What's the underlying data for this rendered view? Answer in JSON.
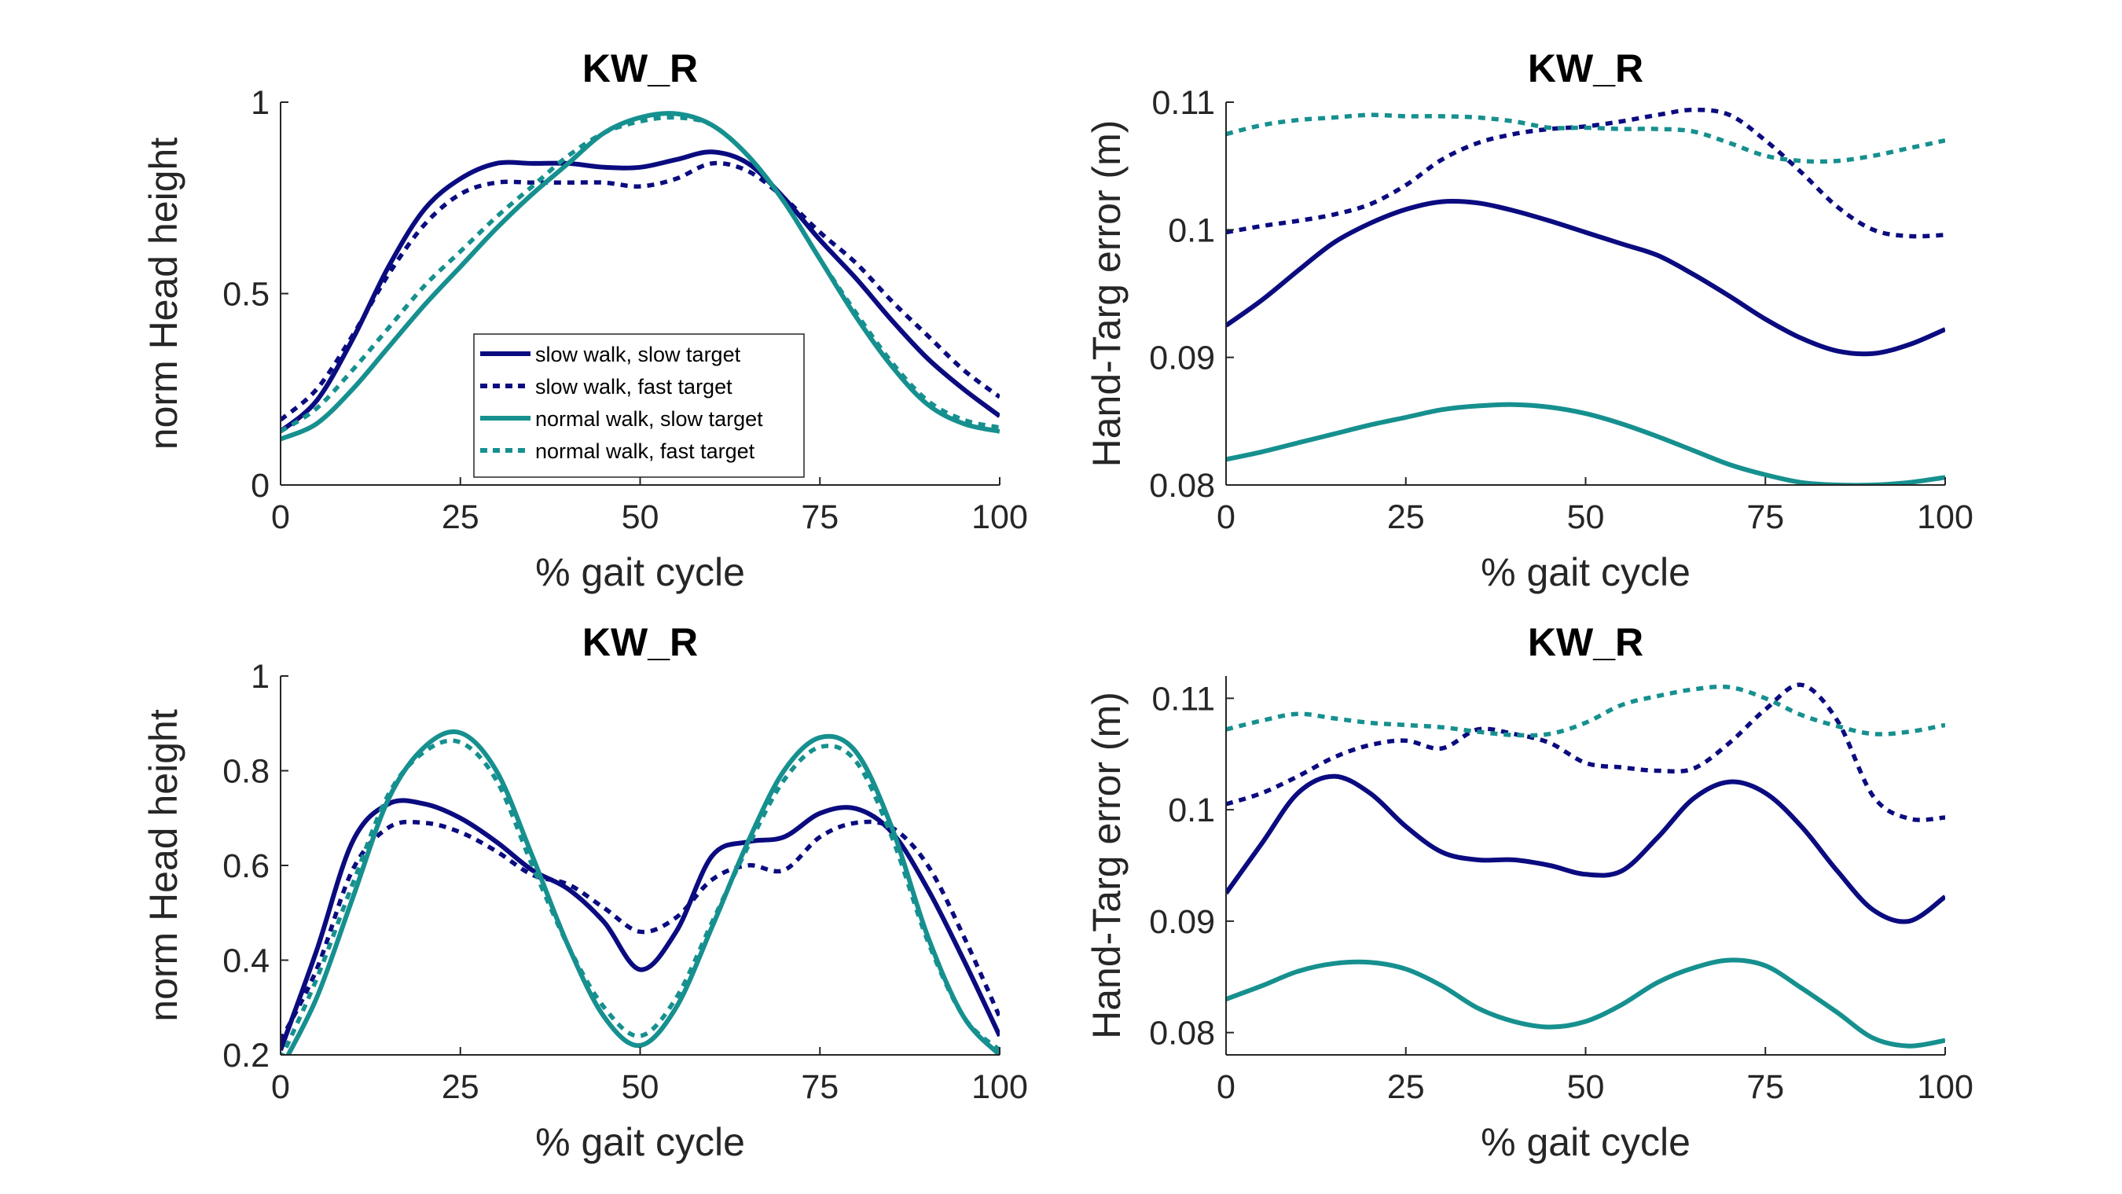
{
  "colors": {
    "navy": "#0b0b80",
    "teal": "#16908f"
  },
  "chart_data": [
    {
      "type": "line",
      "title": "KW_R",
      "xlabel": "% gait cycle",
      "ylabel": "norm Head height",
      "xlim": [
        0,
        100
      ],
      "ylim": [
        0,
        1
      ],
      "xticks": [
        "0",
        "25",
        "50",
        "75",
        "100"
      ],
      "yticks": [
        "0",
        "0.5",
        "1"
      ],
      "legend": {
        "placement": "center-left",
        "entries": [
          "slow walk, slow target",
          "slow walk, fast target",
          "normal walk, slow target",
          "normal walk, fast target"
        ]
      },
      "series": [
        {
          "name": "slow walk, slow target",
          "color": "#0b0b80",
          "dash": "solid",
          "x": [
            0,
            5,
            10,
            15,
            20,
            25,
            30,
            35,
            40,
            45,
            50,
            55,
            60,
            65,
            70,
            75,
            80,
            85,
            90,
            95,
            100
          ],
          "y": [
            0.14,
            0.22,
            0.38,
            0.57,
            0.72,
            0.8,
            0.84,
            0.84,
            0.84,
            0.83,
            0.83,
            0.85,
            0.87,
            0.84,
            0.75,
            0.64,
            0.54,
            0.43,
            0.33,
            0.25,
            0.18
          ]
        },
        {
          "name": "slow walk, fast target",
          "color": "#0b0b80",
          "dash": "dotted",
          "x": [
            0,
            5,
            10,
            15,
            20,
            25,
            30,
            35,
            40,
            45,
            50,
            55,
            60,
            65,
            70,
            75,
            80,
            85,
            90,
            95,
            100
          ],
          "y": [
            0.17,
            0.25,
            0.39,
            0.55,
            0.68,
            0.76,
            0.79,
            0.79,
            0.79,
            0.79,
            0.78,
            0.8,
            0.84,
            0.82,
            0.75,
            0.66,
            0.58,
            0.48,
            0.39,
            0.3,
            0.23
          ]
        },
        {
          "name": "normal walk, slow target",
          "color": "#16908f",
          "dash": "solid",
          "x": [
            0,
            5,
            10,
            15,
            20,
            25,
            30,
            35,
            40,
            45,
            50,
            55,
            60,
            65,
            70,
            75,
            80,
            85,
            90,
            95,
            100
          ],
          "y": [
            0.12,
            0.16,
            0.25,
            0.36,
            0.47,
            0.57,
            0.67,
            0.76,
            0.84,
            0.92,
            0.96,
            0.97,
            0.94,
            0.86,
            0.74,
            0.59,
            0.44,
            0.31,
            0.21,
            0.16,
            0.14
          ]
        },
        {
          "name": "normal walk, fast target",
          "color": "#16908f",
          "dash": "dotted",
          "x": [
            0,
            5,
            10,
            15,
            20,
            25,
            30,
            35,
            40,
            45,
            50,
            55,
            60,
            65,
            70,
            75,
            80,
            85,
            90,
            95,
            100
          ],
          "y": [
            0.14,
            0.2,
            0.3,
            0.41,
            0.52,
            0.61,
            0.7,
            0.78,
            0.86,
            0.92,
            0.95,
            0.96,
            0.94,
            0.86,
            0.74,
            0.59,
            0.45,
            0.32,
            0.22,
            0.17,
            0.15
          ]
        }
      ]
    },
    {
      "type": "line",
      "title": "KW_R",
      "xlabel": "% gait cycle",
      "ylabel": "Hand-Targ error (m)",
      "xlim": [
        0,
        100
      ],
      "ylim": [
        0.08,
        0.11
      ],
      "xticks": [
        "0",
        "25",
        "50",
        "75",
        "100"
      ],
      "yticks": [
        "0.08",
        "0.09",
        "0.1",
        "0.11"
      ],
      "series": [
        {
          "name": "slow walk, slow target",
          "color": "#0b0b80",
          "dash": "solid",
          "x": [
            0,
            5,
            10,
            15,
            20,
            25,
            30,
            35,
            40,
            45,
            50,
            55,
            60,
            65,
            70,
            75,
            80,
            85,
            90,
            95,
            100
          ],
          "y": [
            0.0925,
            0.0945,
            0.0968,
            0.099,
            0.1005,
            0.1016,
            0.1022,
            0.1021,
            0.1015,
            0.1007,
            0.0998,
            0.0989,
            0.098,
            0.0965,
            0.0948,
            0.093,
            0.0915,
            0.0905,
            0.0903,
            0.091,
            0.0922
          ]
        },
        {
          "name": "slow walk, fast target",
          "color": "#0b0b80",
          "dash": "dotted",
          "x": [
            0,
            5,
            10,
            15,
            20,
            25,
            30,
            35,
            40,
            45,
            50,
            55,
            60,
            65,
            70,
            75,
            80,
            85,
            90,
            95,
            100
          ],
          "y": [
            0.0998,
            0.1003,
            0.1007,
            0.1012,
            0.102,
            0.1035,
            0.1055,
            0.1068,
            0.1075,
            0.1079,
            0.1081,
            0.1085,
            0.109,
            0.1094,
            0.109,
            0.107,
            0.1045,
            0.1018,
            0.1,
            0.0995,
            0.0996
          ]
        },
        {
          "name": "normal walk, slow target",
          "color": "#16908f",
          "dash": "solid",
          "x": [
            0,
            5,
            10,
            15,
            20,
            25,
            30,
            35,
            40,
            45,
            50,
            55,
            60,
            65,
            70,
            75,
            80,
            85,
            90,
            95,
            100
          ],
          "y": [
            0.082,
            0.0826,
            0.0833,
            0.084,
            0.0847,
            0.0853,
            0.0859,
            0.0862,
            0.0863,
            0.0861,
            0.0856,
            0.0848,
            0.0838,
            0.0827,
            0.0816,
            0.0808,
            0.0802,
            0.08,
            0.08,
            0.0802,
            0.0806
          ]
        },
        {
          "name": "normal walk, fast target",
          "color": "#16908f",
          "dash": "dotted",
          "x": [
            0,
            5,
            10,
            15,
            20,
            25,
            30,
            35,
            40,
            45,
            50,
            55,
            60,
            65,
            70,
            75,
            80,
            85,
            90,
            95,
            100
          ],
          "y": [
            0.1075,
            0.1082,
            0.1086,
            0.1088,
            0.109,
            0.1089,
            0.1089,
            0.1088,
            0.1085,
            0.108,
            0.108,
            0.1079,
            0.1079,
            0.1077,
            0.1068,
            0.1058,
            0.1054,
            0.1054,
            0.1058,
            0.1064,
            0.107
          ]
        }
      ]
    },
    {
      "type": "line",
      "title": "KW_R",
      "xlabel": "% gait cycle",
      "ylabel": "norm Head height",
      "xlim": [
        0,
        100
      ],
      "ylim": [
        0.2,
        1
      ],
      "xticks": [
        "0",
        "25",
        "50",
        "75",
        "100"
      ],
      "yticks": [
        "0.2",
        "0.4",
        "0.6",
        "0.8",
        "1"
      ],
      "series": [
        {
          "name": "slow walk, slow target",
          "color": "#0b0b80",
          "dash": "solid",
          "x": [
            0,
            5,
            10,
            15,
            20,
            25,
            30,
            35,
            40,
            45,
            50,
            55,
            60,
            65,
            70,
            75,
            80,
            85,
            90,
            95,
            100
          ],
          "y": [
            0.21,
            0.42,
            0.65,
            0.73,
            0.73,
            0.7,
            0.65,
            0.59,
            0.55,
            0.48,
            0.38,
            0.46,
            0.62,
            0.65,
            0.66,
            0.71,
            0.72,
            0.67,
            0.55,
            0.4,
            0.24
          ]
        },
        {
          "name": "slow walk, fast target",
          "color": "#0b0b80",
          "dash": "dotted",
          "x": [
            0,
            5,
            10,
            15,
            20,
            25,
            30,
            35,
            40,
            45,
            50,
            55,
            60,
            65,
            70,
            75,
            80,
            85,
            90,
            95,
            100
          ],
          "y": [
            0.23,
            0.38,
            0.59,
            0.68,
            0.69,
            0.67,
            0.63,
            0.58,
            0.56,
            0.51,
            0.46,
            0.49,
            0.57,
            0.6,
            0.59,
            0.66,
            0.69,
            0.68,
            0.6,
            0.45,
            0.28
          ]
        },
        {
          "name": "normal walk, slow target",
          "color": "#16908f",
          "dash": "solid",
          "x": [
            0,
            5,
            10,
            15,
            20,
            25,
            30,
            35,
            40,
            45,
            50,
            55,
            60,
            65,
            70,
            75,
            80,
            85,
            90,
            95,
            100
          ],
          "y": [
            0.17,
            0.32,
            0.53,
            0.74,
            0.85,
            0.88,
            0.8,
            0.62,
            0.43,
            0.28,
            0.22,
            0.3,
            0.47,
            0.65,
            0.8,
            0.87,
            0.84,
            0.68,
            0.45,
            0.28,
            0.2
          ]
        },
        {
          "name": "normal walk, fast target",
          "color": "#16908f",
          "dash": "dotted",
          "x": [
            0,
            5,
            10,
            15,
            20,
            25,
            30,
            35,
            40,
            45,
            50,
            55,
            60,
            65,
            70,
            75,
            80,
            85,
            90,
            95,
            100
          ],
          "y": [
            0.19,
            0.36,
            0.56,
            0.75,
            0.84,
            0.86,
            0.78,
            0.6,
            0.43,
            0.3,
            0.24,
            0.32,
            0.48,
            0.64,
            0.78,
            0.85,
            0.82,
            0.66,
            0.44,
            0.28,
            0.21
          ]
        }
      ]
    },
    {
      "type": "line",
      "title": "KW_R",
      "xlabel": "% gait cycle",
      "ylabel": "Hand-Targ error (m)",
      "xlim": [
        0,
        100
      ],
      "ylim": [
        0.078,
        0.112
      ],
      "xticks": [
        "0",
        "25",
        "50",
        "75",
        "100"
      ],
      "yticks": [
        "0.08",
        "0.09",
        "0.1",
        "0.11"
      ],
      "series": [
        {
          "name": "slow walk, slow target",
          "color": "#0b0b80",
          "dash": "solid",
          "x": [
            0,
            5,
            10,
            15,
            20,
            25,
            30,
            35,
            40,
            45,
            50,
            55,
            60,
            65,
            70,
            75,
            80,
            85,
            90,
            95,
            100
          ],
          "y": [
            0.0925,
            0.097,
            0.1015,
            0.103,
            0.1015,
            0.0985,
            0.0962,
            0.0955,
            0.0955,
            0.095,
            0.0942,
            0.0945,
            0.0975,
            0.101,
            0.1025,
            0.1015,
            0.0985,
            0.0945,
            0.091,
            0.09,
            0.0922
          ]
        },
        {
          "name": "slow walk, fast target",
          "color": "#0b0b80",
          "dash": "dotted",
          "x": [
            0,
            5,
            10,
            15,
            20,
            25,
            30,
            35,
            40,
            45,
            50,
            55,
            60,
            65,
            70,
            75,
            80,
            85,
            90,
            95,
            100
          ],
          "y": [
            0.1005,
            0.1015,
            0.103,
            0.1047,
            0.1058,
            0.1062,
            0.1055,
            0.1072,
            0.1068,
            0.106,
            0.1042,
            0.1038,
            0.1035,
            0.1037,
            0.106,
            0.109,
            0.1112,
            0.108,
            0.1012,
            0.0992,
            0.0993
          ]
        },
        {
          "name": "normal walk, slow target",
          "color": "#16908f",
          "dash": "solid",
          "x": [
            0,
            5,
            10,
            15,
            20,
            25,
            30,
            35,
            40,
            45,
            50,
            55,
            60,
            65,
            70,
            75,
            80,
            85,
            90,
            95,
            100
          ],
          "y": [
            0.083,
            0.0842,
            0.0855,
            0.0862,
            0.0863,
            0.0857,
            0.0842,
            0.0822,
            0.081,
            0.0805,
            0.081,
            0.0825,
            0.0845,
            0.0858,
            0.0865,
            0.086,
            0.084,
            0.0818,
            0.0795,
            0.0788,
            0.0793
          ]
        },
        {
          "name": "normal walk, fast target",
          "color": "#16908f",
          "dash": "dotted",
          "x": [
            0,
            5,
            10,
            15,
            20,
            25,
            30,
            35,
            40,
            45,
            50,
            55,
            60,
            65,
            70,
            75,
            80,
            85,
            90,
            95,
            100
          ],
          "y": [
            0.1072,
            0.108,
            0.1086,
            0.1082,
            0.1078,
            0.1076,
            0.1074,
            0.107,
            0.1067,
            0.1068,
            0.1078,
            0.1094,
            0.1102,
            0.1108,
            0.111,
            0.11,
            0.1085,
            0.1075,
            0.1068,
            0.107,
            0.1076
          ]
        }
      ]
    }
  ]
}
